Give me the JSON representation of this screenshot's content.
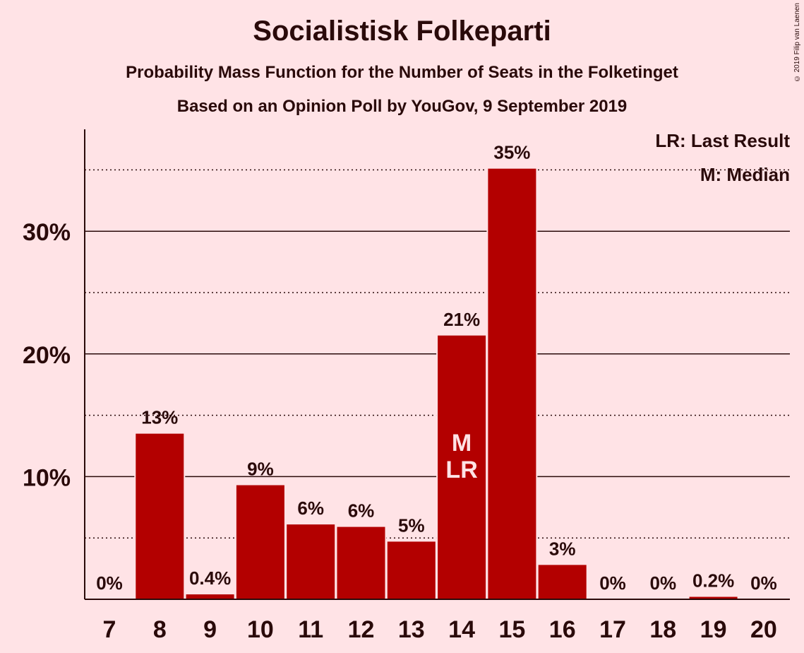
{
  "chart_data": {
    "type": "bar",
    "title": "Socialistisk Folkeparti",
    "subtitle": "Probability Mass Function for the Number of Seats in the Folketinget",
    "subtitle2": "Based on an Opinion Poll by YouGov, 9 September 2019",
    "copyright": "© 2019 Filip van Laenen",
    "categories": [
      "7",
      "8",
      "9",
      "10",
      "11",
      "12",
      "13",
      "14",
      "15",
      "16",
      "17",
      "18",
      "19",
      "20"
    ],
    "values": [
      0,
      13.5,
      0.4,
      9.3,
      6.1,
      5.9,
      4.7,
      21.5,
      35.1,
      2.8,
      0,
      0,
      0.2,
      0
    ],
    "value_labels": [
      "0%",
      "13%",
      "0.4%",
      "9%",
      "6%",
      "6%",
      "5%",
      "21%",
      "35%",
      "3%",
      "0%",
      "0%",
      "0.2%",
      "0%"
    ],
    "ylim": [
      0,
      38.3
    ],
    "yticks_major": [
      10,
      20,
      30
    ],
    "ytick_labels": [
      "10%",
      "20%",
      "30%"
    ],
    "yticks_minor": [
      5,
      15,
      25,
      35
    ],
    "bar_color": "#B30000",
    "background_color": "#FFE3E6",
    "markers": [
      {
        "category": "14",
        "label": "M"
      },
      {
        "category": "14",
        "label": "LR"
      }
    ],
    "legend": {
      "placement": "top-right",
      "entries": [
        "LR: Last Result",
        "M: Median"
      ]
    }
  }
}
